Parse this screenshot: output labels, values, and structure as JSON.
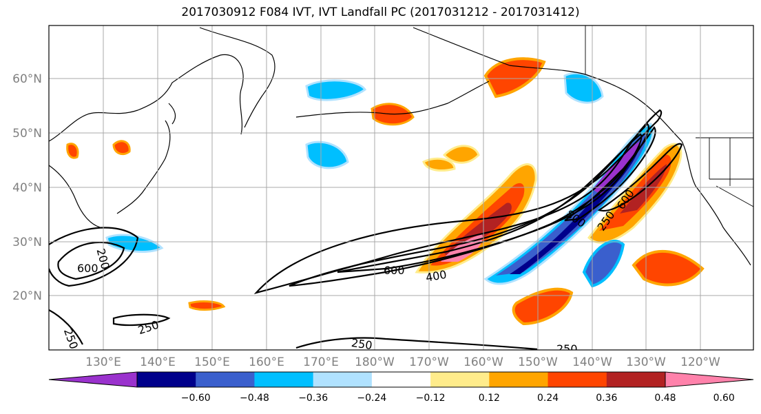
{
  "title": "2017030912 F084 IVT, IVT Landfall PC (2017031212 - 2017031412)",
  "lat_labels": [
    "60°N",
    "50°N",
    "40°N",
    "30°N",
    "20°N"
  ],
  "lon_labels": [
    "130°E",
    "140°E",
    "150°E",
    "160°E",
    "170°E",
    "180°W",
    "170°W",
    "160°W",
    "150°W",
    "140°W",
    "130°W",
    "120°W"
  ],
  "contour_labels": [
    "600",
    "200",
    "250",
    "250",
    "600",
    "400",
    "800",
    "250",
    "600",
    "250",
    "250"
  ],
  "colorbar": {
    "colors": [
      "#9a32cd",
      "#00008b",
      "#3a5fcd",
      "#00bfff",
      "#b0e2ff",
      "#ffffff",
      "#ffec8b",
      "#ffa500",
      "#ff4500",
      "#b22222",
      "#ff82ab"
    ],
    "tick_labels": [
      "−0.60",
      "−0.48",
      "−0.36",
      "−0.24",
      "−0.12",
      "0.12",
      "0.24",
      "0.36",
      "0.48",
      "0.60"
    ]
  }
}
